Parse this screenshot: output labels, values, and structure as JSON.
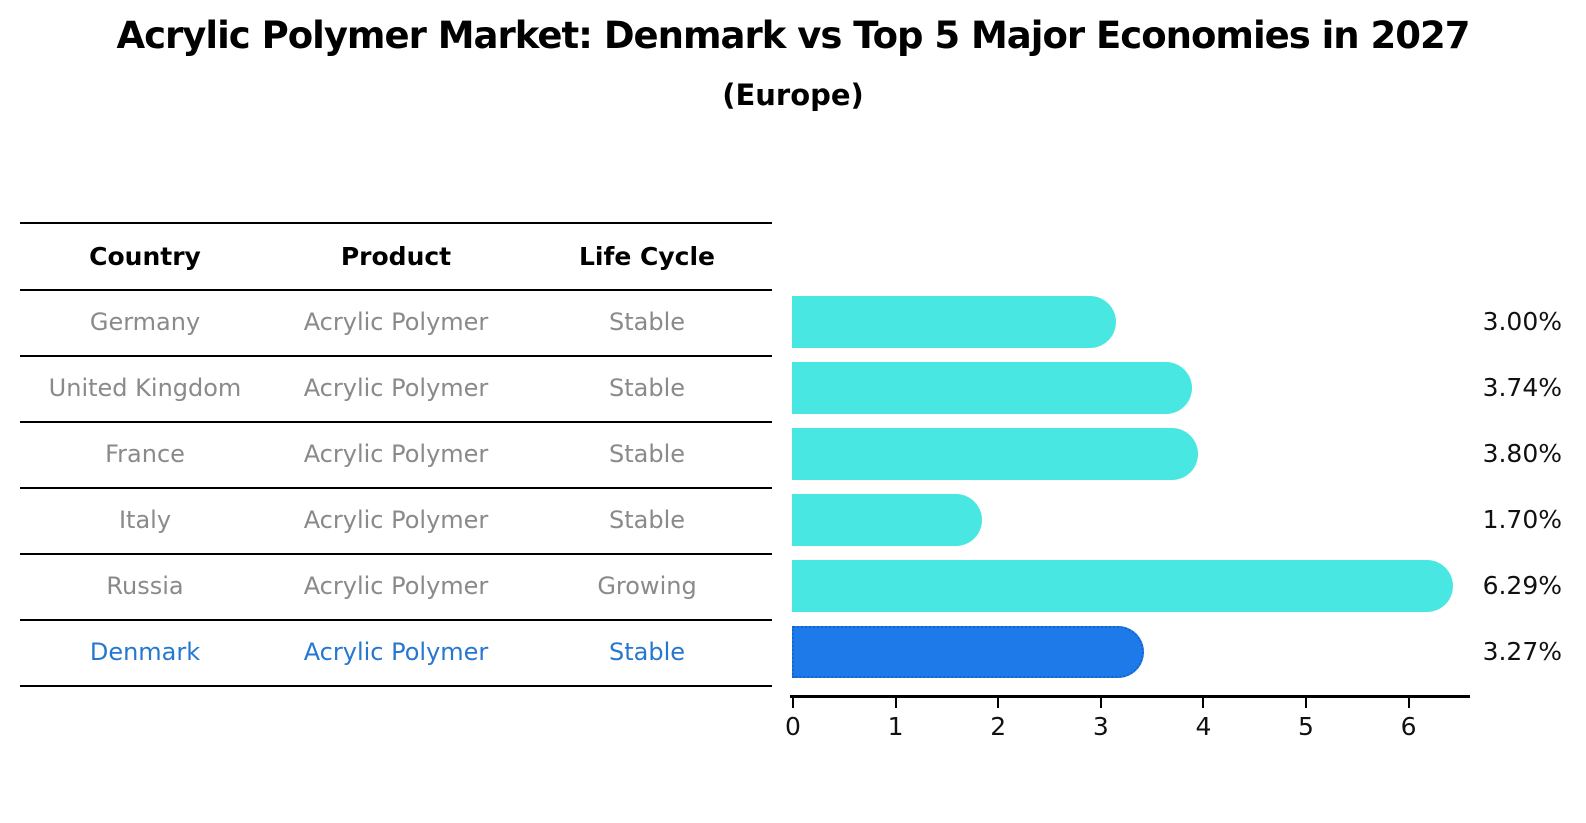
{
  "title": "Acrylic Polymer Market: Denmark vs Top 5 Major Economies in 2027",
  "subtitle": "(Europe)",
  "table": {
    "headers": {
      "country": "Country",
      "product": "Product",
      "life_cycle": "Life Cycle"
    },
    "rows": [
      {
        "country": "Germany",
        "product": "Acrylic Polymer",
        "life_cycle": "Stable",
        "highlight": false
      },
      {
        "country": "United Kingdom",
        "product": "Acrylic Polymer",
        "life_cycle": "Stable",
        "highlight": false
      },
      {
        "country": "France",
        "product": "Acrylic Polymer",
        "life_cycle": "Stable",
        "highlight": false
      },
      {
        "country": "Italy",
        "product": "Acrylic Polymer",
        "life_cycle": "Stable",
        "highlight": false
      },
      {
        "country": "Russia",
        "product": "Acrylic Polymer",
        "life_cycle": "Growing",
        "highlight": false
      },
      {
        "country": "Denmark",
        "product": "Acrylic Polymer",
        "life_cycle": "Stable",
        "highlight": true
      }
    ]
  },
  "chart_data": {
    "type": "bar",
    "orientation": "horizontal",
    "title": "Acrylic Polymer Market: Denmark vs Top 5 Major Economies in 2027",
    "subtitle": "(Europe)",
    "categories": [
      "Germany",
      "United Kingdom",
      "France",
      "Italy",
      "Russia",
      "Denmark"
    ],
    "values": [
      3.0,
      3.74,
      3.8,
      1.7,
      6.29,
      3.27
    ],
    "value_labels": [
      "3.00%",
      "3.74%",
      "3.80%",
      "1.70%",
      "6.29%",
      "3.27%"
    ],
    "highlight_index": 5,
    "x_ticks": [
      "0",
      "1",
      "2",
      "3",
      "4",
      "5",
      "6"
    ],
    "xlim": [
      0,
      6.6
    ],
    "grid": false,
    "legend": false,
    "bar_color": "#48e7e1",
    "highlight_bar_color": "#1e7ae8",
    "highlight_bar_border_color": "#1563ce"
  },
  "colors": {
    "row_text": "#8a8a8a",
    "header_text": "#000000",
    "highlight_text": "#2577d0",
    "value_label_text": "#111111",
    "table_line": "#000000",
    "axis_line": "#000000"
  }
}
